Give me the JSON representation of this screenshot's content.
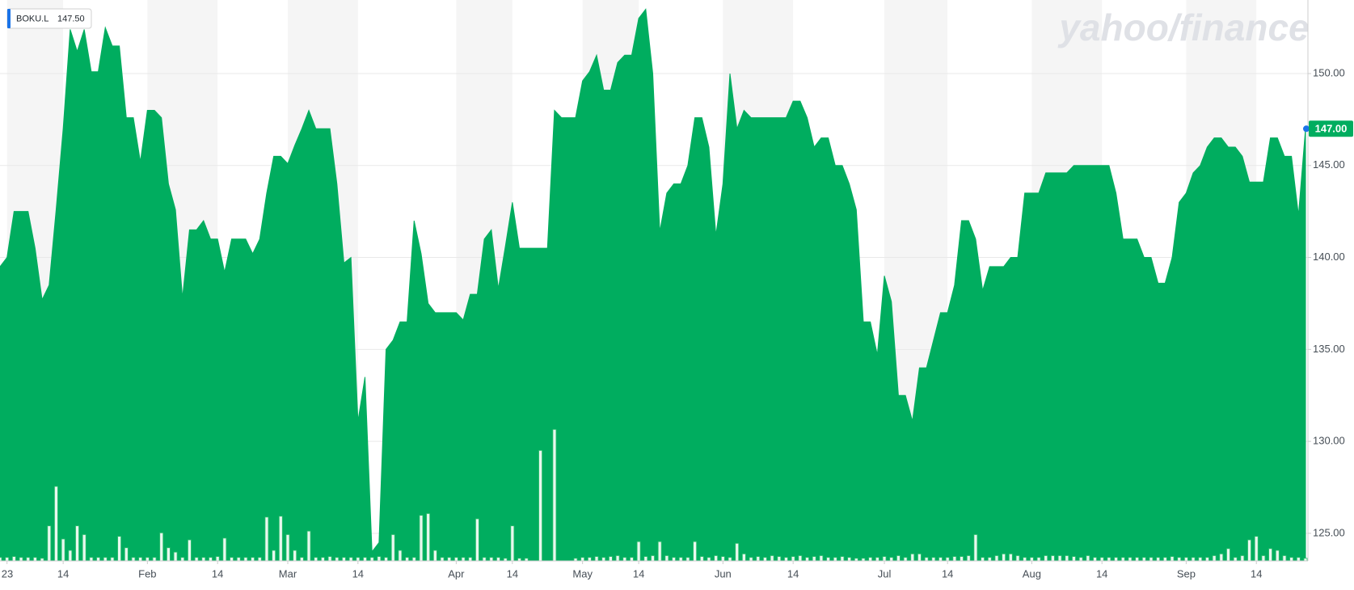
{
  "chart_data": {
    "type": "area",
    "watermark": "yahoo/finance",
    "quote_label": "147.50",
    "last_price_label": "147.00",
    "categories": [
      null,
      "23",
      null,
      null,
      null,
      null,
      null,
      null,
      null,
      "14",
      null,
      null,
      null,
      null,
      null,
      null,
      null,
      null,
      null,
      null,
      null,
      "Feb",
      null,
      null,
      null,
      null,
      null,
      null,
      null,
      null,
      null,
      "14",
      null,
      null,
      null,
      null,
      null,
      null,
      null,
      null,
      null,
      "Mar",
      null,
      null,
      null,
      null,
      null,
      null,
      null,
      null,
      null,
      "14",
      null,
      null,
      null,
      null,
      null,
      null,
      null,
      null,
      null,
      null,
      null,
      null,
      null,
      "Apr",
      null,
      null,
      null,
      null,
      null,
      null,
      null,
      "14",
      null,
      null,
      null,
      null,
      null,
      null,
      null,
      null,
      null,
      "May",
      null,
      null,
      null,
      null,
      null,
      null,
      null,
      "14",
      null,
      null,
      null,
      null,
      null,
      null,
      null,
      null,
      null,
      null,
      null,
      "Jun",
      null,
      null,
      null,
      null,
      null,
      null,
      null,
      null,
      null,
      "14",
      null,
      null,
      null,
      null,
      null,
      null,
      null,
      null,
      null,
      null,
      null,
      null,
      "Jul",
      null,
      null,
      null,
      null,
      null,
      null,
      null,
      null,
      "14",
      null,
      null,
      null,
      null,
      null,
      null,
      null,
      null,
      null,
      null,
      null,
      "Aug",
      null,
      null,
      null,
      null,
      null,
      null,
      null,
      null,
      null,
      "14",
      null,
      null,
      null,
      null,
      null,
      null,
      null,
      null,
      null,
      null,
      null,
      "Sep",
      null,
      null,
      null,
      null,
      null,
      null,
      null,
      null,
      null,
      "14",
      null,
      null,
      null,
      null,
      null,
      null,
      null
    ],
    "series": [
      {
        "name": "BOKU.L",
        "color": "#00ad5f",
        "values": [
          139.5,
          140,
          142.5,
          142.5,
          142.5,
          140.5,
          137.7,
          138.5,
          142.6,
          147,
          152.4,
          151.2,
          152.4,
          150.1,
          150.1,
          152.5,
          151.5,
          151.5,
          147.6,
          147.6,
          145.2,
          148,
          148,
          147.6,
          144,
          142.6,
          137.8,
          141.5,
          141.5,
          142,
          141,
          141,
          139.2,
          141,
          141,
          141,
          140.2,
          141,
          143.5,
          145.5,
          145.5,
          145.1,
          146.1,
          147,
          148,
          147,
          147,
          147,
          144,
          139.7,
          140,
          131.1,
          133.5,
          124,
          124.5,
          135,
          135.5,
          136.5,
          136.5,
          142,
          140.2,
          137.5,
          137,
          137,
          137,
          137,
          136.6,
          138,
          138,
          141,
          141.5,
          138.3,
          140.6,
          143,
          140.5,
          140.5,
          140.5,
          140.5,
          140.5,
          148,
          147.6,
          147.6,
          147.6,
          149.6,
          150.1,
          151,
          149.1,
          149.1,
          150.6,
          151,
          151,
          153,
          153.5,
          150,
          141.4,
          143.5,
          144,
          144,
          145,
          147.6,
          147.6,
          146,
          141.2,
          144,
          150,
          147,
          148,
          147.6,
          147.6,
          147.6,
          147.6,
          147.6,
          147.6,
          148.5,
          148.5,
          147.6,
          146,
          146.5,
          146.5,
          145,
          145,
          144,
          142.6,
          136.5,
          136.5,
          134.7,
          139,
          137.6,
          132.5,
          132.5,
          131.1,
          134,
          134,
          135.5,
          137,
          137,
          138.5,
          142,
          142,
          141,
          138.2,
          139.5,
          139.5,
          139.5,
          140,
          140,
          143.5,
          143.5,
          143.5,
          144.6,
          144.6,
          144.6,
          144.6,
          145,
          145,
          145,
          145,
          145,
          145,
          143.5,
          141,
          141,
          141,
          140,
          140,
          138.6,
          138.6,
          140,
          143,
          143.5,
          144.6,
          145,
          146,
          146.5,
          146.5,
          146,
          146,
          145.5,
          144.1,
          144.1,
          144.1,
          146.5,
          146.5,
          145.5,
          145.5,
          142.3,
          147
        ]
      },
      {
        "axis": "y2",
        "color": "#e8f8ef",
        "values": [
          4,
          4,
          5,
          4,
          4,
          4,
          3,
          40,
          85,
          25,
          12,
          40,
          30,
          4,
          4,
          4,
          4,
          28,
          15,
          4,
          4,
          4,
          4,
          32,
          15,
          10,
          4,
          24,
          4,
          4,
          4,
          5,
          26,
          4,
          4,
          4,
          4,
          4,
          50,
          12,
          51,
          30,
          12,
          4,
          34,
          4,
          4,
          5,
          4,
          4,
          4,
          4,
          4,
          4,
          5,
          4,
          30,
          12,
          4,
          4,
          52,
          54,
          12,
          4,
          4,
          4,
          4,
          4,
          48,
          4,
          4,
          4,
          3,
          40,
          3,
          3,
          0,
          126,
          0,
          150,
          0,
          0,
          3,
          4,
          4,
          5,
          4,
          5,
          6,
          4,
          4,
          22,
          5,
          6,
          22,
          6,
          4,
          4,
          4,
          22,
          5,
          4,
          6,
          5,
          4,
          20,
          8,
          4,
          5,
          4,
          6,
          5,
          4,
          5,
          6,
          4,
          5,
          6,
          4,
          4,
          5,
          4,
          3,
          3,
          4,
          4,
          5,
          4,
          6,
          4,
          8,
          8,
          4,
          4,
          4,
          4,
          5,
          5,
          6,
          30,
          4,
          4,
          6,
          8,
          8,
          6,
          4,
          4,
          4,
          6,
          6,
          6,
          6,
          5,
          4,
          6,
          4,
          4,
          4,
          4,
          4,
          4,
          4,
          4,
          4,
          4,
          4,
          5,
          4,
          4,
          4,
          4,
          4,
          6,
          8,
          14,
          4,
          6,
          24,
          28,
          6,
          14,
          12,
          6,
          4,
          4,
          3
        ]
      }
    ],
    "ylim": [
      123.5,
      154
    ],
    "yticks": [
      {
        "value": 125,
        "label": "125.00"
      },
      {
        "value": 130,
        "label": "130.00"
      },
      {
        "value": 135,
        "label": "135.00"
      },
      {
        "value": 140,
        "label": "140.00"
      },
      {
        "value": 145,
        "label": "145.00"
      },
      {
        "value": 150,
        "label": "150.00"
      }
    ],
    "y2lim": [
      0,
      640
    ],
    "grid": true
  }
}
